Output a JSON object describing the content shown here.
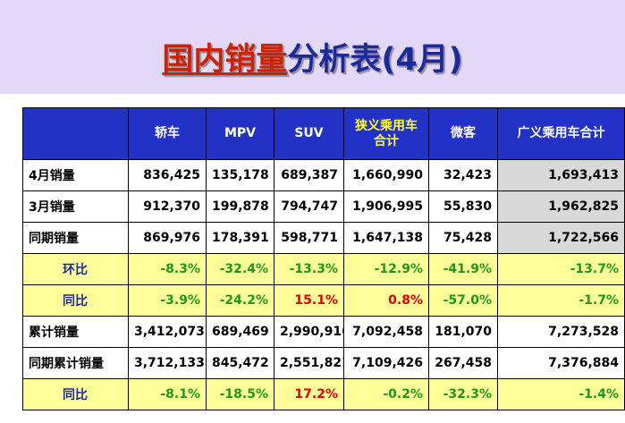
{
  "title": {
    "part1": "国内销量",
    "part2": "分析表(4月)"
  },
  "table": {
    "headers": [
      "",
      "轿车",
      "MPV",
      "SUV",
      "狭义乘用车合计",
      "微客",
      "广义乘用车合计"
    ],
    "rows": [
      {
        "label": "4月销量",
        "cells": [
          "836,425",
          "135,178",
          "689,387",
          "1,660,990",
          "32,423",
          "1,693,413"
        ]
      },
      {
        "label": "3月销量",
        "cells": [
          "912,370",
          "199,878",
          "794,747",
          "1,906,995",
          "55,830",
          "1,962,825"
        ]
      },
      {
        "label": "同期销量",
        "cells": [
          "869,976",
          "178,391",
          "598,771",
          "1,647,138",
          "75,428",
          "1,722,566"
        ]
      },
      {
        "label": "环比",
        "cells": [
          "-8.3%",
          "-32.4%",
          "-13.3%",
          "-12.9%",
          "-41.9%",
          "-13.7%"
        ]
      },
      {
        "label": "同比",
        "cells": [
          "-3.9%",
          "-24.2%",
          "15.1%",
          "0.8%",
          "-57.0%",
          "-1.7%"
        ]
      },
      {
        "label": "累计销量",
        "cells": [
          "3,412,073",
          "689,469",
          "2,990,916",
          "7,092,458",
          "181,070",
          "7,273,528"
        ]
      },
      {
        "label": "同期累计销量",
        "cells": [
          "3,712,133",
          "845,472",
          "2,551,821",
          "7,109,426",
          "267,458",
          "7,376,884"
        ]
      },
      {
        "label": "同比",
        "cells": [
          "-8.1%",
          "-18.5%",
          "17.2%",
          "-0.2%",
          "-32.3%",
          "-1.4%"
        ]
      }
    ]
  },
  "colors": {
    "title_band": "#e3d8f6",
    "header_bg": "#2231c6",
    "highlight_row": "#ffff99",
    "negative_pct": "#1d9a1d",
    "positive_pct": "#e00000",
    "total_column": "#d9d9d9"
  }
}
